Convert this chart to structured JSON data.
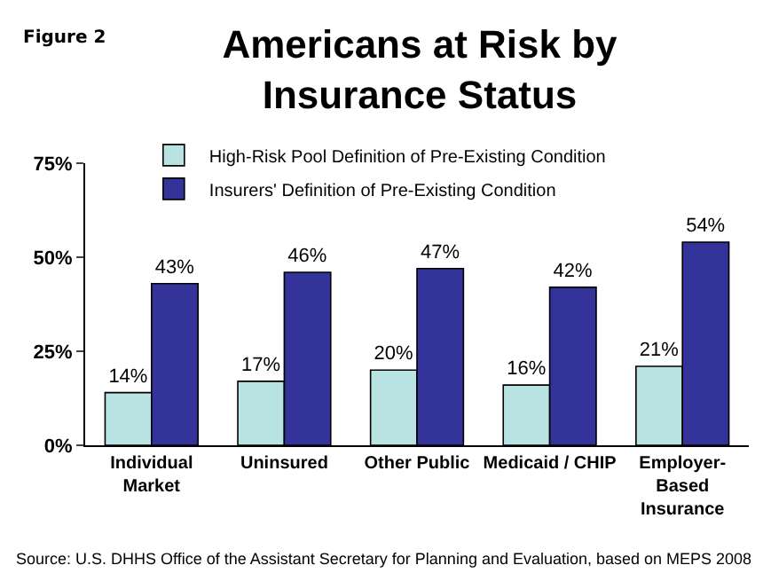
{
  "chart_data": {
    "type": "bar",
    "title": "Americans at Risk by\nInsurance Status",
    "categories": [
      "Individual\nMarket",
      "Uninsured",
      "Other Public",
      "Medicaid / CHIP",
      "Employer-\nBased\nInsurance"
    ],
    "series": [
      {
        "name": "High-Risk Pool Definition of Pre-Existing Condition",
        "color": "#b9e3e3",
        "values": [
          14,
          17,
          20,
          16,
          21
        ],
        "value_labels": [
          "14%",
          "17%",
          "20%",
          "16%",
          "21%"
        ]
      },
      {
        "name": "Insurers' Definition of Pre-Existing Condition",
        "color": "#333399",
        "values": [
          43,
          46,
          47,
          42,
          54
        ],
        "value_labels": [
          "43%",
          "46%",
          "47%",
          "42%",
          "54%"
        ]
      }
    ],
    "ylim": [
      0,
      75
    ],
    "yticks": [
      {
        "value": 0,
        "label": "0%"
      },
      {
        "value": 25,
        "label": "25%"
      },
      {
        "value": 50,
        "label": "50%"
      },
      {
        "value": 75,
        "label": "75%"
      }
    ],
    "grid": false,
    "legend": "top left",
    "annotations": [
      "Figure 2",
      "Source: U.S. DHHS Office of the Assistant Secretary for Planning and Evaluation, based on MEPS 2008"
    ]
  }
}
